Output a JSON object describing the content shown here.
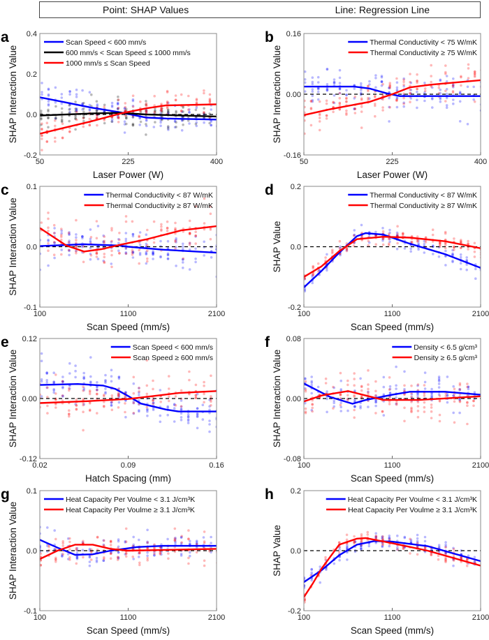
{
  "header": {
    "left": "Point: SHAP Values",
    "right": "Line: Regression Line"
  },
  "colors": {
    "blue": "#0000ff",
    "red": "#ff0000",
    "black": "#000000"
  },
  "chart_data": [
    {
      "type": "line",
      "letter": "a",
      "xlabel": "Laser Power (W)",
      "ylabel": "SHAP Interaction Value",
      "xlim": [
        50,
        400
      ],
      "ylim": [
        -0.2,
        0.4
      ],
      "xticks": [
        50,
        225,
        400
      ],
      "xtick_labels": [
        "50",
        "225",
        "400"
      ],
      "yticks": [
        -0.2,
        0,
        0.2,
        0.4
      ],
      "ytick_labels": [
        "-0.2",
        "0.0",
        "0.2",
        "0.4"
      ],
      "legend_position": "top-left",
      "scatter_spread": 0.05,
      "series": [
        {
          "name": "Scan Speed < 600 mm/s",
          "color": "blue",
          "points": [
            [
              50,
              0.085
            ],
            [
              100,
              0.06
            ],
            [
              150,
              0.035
            ],
            [
              210,
              0.01
            ],
            [
              260,
              -0.015
            ],
            [
              300,
              -0.02
            ],
            [
              400,
              -0.025
            ]
          ]
        },
        {
          "name": "600 mm/s < Scan Speed ≤ 1000 mm/s",
          "color": "black",
          "points": [
            [
              50,
              -0.005
            ],
            [
              150,
              0.005
            ],
            [
              210,
              0.008
            ],
            [
              260,
              0.0
            ],
            [
              400,
              -0.01
            ]
          ]
        },
        {
          "name": "1000 mm/s ≤ Scan Speed",
          "color": "red",
          "points": [
            [
              50,
              -0.095
            ],
            [
              100,
              -0.065
            ],
            [
              150,
              -0.035
            ],
            [
              210,
              0.005
            ],
            [
              260,
              0.03
            ],
            [
              300,
              0.045
            ],
            [
              400,
              0.05
            ]
          ]
        }
      ]
    },
    {
      "type": "line",
      "letter": "b",
      "xlabel": "Laser Power (W)",
      "ylabel": "SHAP Interaction Value",
      "xlim": [
        50,
        400
      ],
      "ylim": [
        -0.16,
        0.16
      ],
      "xticks": [
        50,
        225,
        400
      ],
      "xtick_labels": [
        "50",
        "225",
        "400"
      ],
      "yticks": [
        -0.16,
        0,
        0.16
      ],
      "ytick_labels": [
        "-0.16",
        "0.00",
        "0.16"
      ],
      "legend_position": "top-right",
      "scatter_spread": 0.04,
      "series": [
        {
          "name": "Thermal Conductivity < 75 W/mK",
          "color": "blue",
          "points": [
            [
              50,
              0.02
            ],
            [
              150,
              0.02
            ],
            [
              180,
              0.015
            ],
            [
              215,
              0.002
            ],
            [
              240,
              -0.005
            ],
            [
              400,
              -0.005
            ]
          ]
        },
        {
          "name": "Thermal Conductivity ≥ 75 W/mK",
          "color": "red",
          "points": [
            [
              50,
              -0.055
            ],
            [
              100,
              -0.04
            ],
            [
              180,
              -0.02
            ],
            [
              225,
              0.0
            ],
            [
              260,
              0.018
            ],
            [
              300,
              0.025
            ],
            [
              400,
              0.037
            ]
          ]
        }
      ]
    },
    {
      "type": "line",
      "letter": "c",
      "xlabel": "Scan Speed (mm/s)",
      "ylabel": "SHAP Interaction Value",
      "xlim": [
        100,
        2100
      ],
      "ylim": [
        -0.1,
        0.1
      ],
      "xticks": [
        100,
        1100,
        2100
      ],
      "xtick_labels": [
        "100",
        "1100",
        "2100"
      ],
      "yticks": [
        -0.1,
        0,
        0.1
      ],
      "ytick_labels": [
        "-0.1",
        "0.0",
        "0.1"
      ],
      "legend_position": "top-right",
      "scatter_spread": 0.025,
      "series": [
        {
          "name": "Thermal Conductivity < 87 W/mK",
          "color": "blue",
          "points": [
            [
              100,
              0.001
            ],
            [
              600,
              0.004
            ],
            [
              1000,
              0.002
            ],
            [
              1100,
              0
            ],
            [
              1500,
              -0.005
            ],
            [
              2100,
              -0.01
            ]
          ]
        },
        {
          "name": "Thermal Conductivity ≥ 87 W/mK",
          "color": "red",
          "points": [
            [
              100,
              0.031
            ],
            [
              400,
              0.002
            ],
            [
              600,
              -0.008
            ],
            [
              800,
              -0.004
            ],
            [
              1000,
              0.003
            ],
            [
              1300,
              0.012
            ],
            [
              1700,
              0.027
            ],
            [
              2100,
              0.034
            ]
          ]
        }
      ]
    },
    {
      "type": "line",
      "letter": "d",
      "xlabel": "Scan Speed (mm/s)",
      "ylabel": "SHAP Value",
      "xlim": [
        100,
        2100
      ],
      "ylim": [
        -0.2,
        0.2
      ],
      "xticks": [
        100,
        1100,
        2100
      ],
      "xtick_labels": [
        "100",
        "1100",
        "2100"
      ],
      "yticks": [
        -0.2,
        0,
        0.2
      ],
      "ytick_labels": [
        "-0.2",
        "0.0",
        "0.2"
      ],
      "legend_position": "top-right",
      "scatter_spread": 0.02,
      "series": [
        {
          "name": "Thermal Conductivity < 87 W/mK",
          "color": "blue",
          "points": [
            [
              100,
              -0.135
            ],
            [
              300,
              -0.08
            ],
            [
              500,
              -0.02
            ],
            [
              700,
              0.035
            ],
            [
              800,
              0.045
            ],
            [
              1000,
              0.04
            ],
            [
              1300,
              0.01
            ],
            [
              1700,
              -0.025
            ],
            [
              2100,
              -0.07
            ]
          ]
        },
        {
          "name": "Thermal Conductivity ≥ 87 W/mK",
          "color": "red",
          "points": [
            [
              100,
              -0.1
            ],
            [
              300,
              -0.065
            ],
            [
              500,
              -0.015
            ],
            [
              700,
              0.025
            ],
            [
              1000,
              0.033
            ],
            [
              1300,
              0.03
            ],
            [
              1700,
              0.018
            ],
            [
              2100,
              -0.005
            ]
          ]
        }
      ]
    },
    {
      "type": "line",
      "letter": "e",
      "xlabel": "Hatch Spacing (mm)",
      "ylabel": "SHAP Interaction Value",
      "xlim": [
        0.02,
        0.16
      ],
      "ylim": [
        -0.12,
        0.12
      ],
      "xticks": [
        0.02,
        0.09,
        0.16
      ],
      "xtick_labels": [
        "0.02",
        "0.09",
        "0.16"
      ],
      "yticks": [
        -0.12,
        0,
        0.12
      ],
      "ytick_labels": [
        "-0.12",
        "0.00",
        "0.12"
      ],
      "legend_position": "top-right",
      "scatter_spread": 0.03,
      "series": [
        {
          "name": "Scan Speed < 600 mm/s",
          "color": "blue",
          "points": [
            [
              0.02,
              0.027
            ],
            [
              0.05,
              0.029
            ],
            [
              0.07,
              0.026
            ],
            [
              0.08,
              0.019
            ],
            [
              0.09,
              0.005
            ],
            [
              0.1,
              -0.01
            ],
            [
              0.12,
              -0.022
            ],
            [
              0.13,
              -0.026
            ],
            [
              0.16,
              -0.026
            ]
          ]
        },
        {
          "name": "Scan Speed ≥ 600 mm/s",
          "color": "red",
          "points": [
            [
              0.02,
              -0.009
            ],
            [
              0.06,
              -0.005
            ],
            [
              0.09,
              -0.001
            ],
            [
              0.11,
              0.005
            ],
            [
              0.13,
              0.011
            ],
            [
              0.16,
              0.015
            ]
          ]
        }
      ]
    },
    {
      "type": "line",
      "letter": "f",
      "xlabel": "Scan Speed (mm/s)",
      "ylabel": "SHAP Interaction Value",
      "xlim": [
        100,
        2100
      ],
      "ylim": [
        -0.08,
        0.08
      ],
      "xticks": [
        100,
        1100,
        2100
      ],
      "xtick_labels": [
        "100",
        "1100",
        "2100"
      ],
      "yticks": [
        -0.08,
        0,
        0.08
      ],
      "ytick_labels": [
        "-0.08",
        "0.00",
        "0.08"
      ],
      "legend_position": "top-right",
      "scatter_spread": 0.018,
      "series": [
        {
          "name": "Density < 6.5 g/cm³",
          "color": "blue",
          "points": [
            [
              100,
              0.02
            ],
            [
              400,
              0.002
            ],
            [
              650,
              -0.007
            ],
            [
              800,
              -0.002
            ],
            [
              1100,
              0.005
            ],
            [
              1300,
              0.009
            ],
            [
              1700,
              0.009
            ],
            [
              2100,
              0.005
            ]
          ]
        },
        {
          "name": "Density ≥ 6.5 g/cm³",
          "color": "red",
          "points": [
            [
              100,
              -0.004
            ],
            [
              300,
              0.004
            ],
            [
              600,
              0.01
            ],
            [
              800,
              0.004
            ],
            [
              1000,
              -0.002
            ],
            [
              1400,
              -0.002
            ],
            [
              2100,
              0.003
            ]
          ]
        }
      ]
    },
    {
      "type": "line",
      "letter": "g",
      "xlabel": "Scan Speed (mm/s)",
      "ylabel": "SHAP Interaction Value",
      "xlim": [
        100,
        2100
      ],
      "ylim": [
        -0.1,
        0.1
      ],
      "xticks": [
        100,
        1100,
        2100
      ],
      "xtick_labels": [
        "100",
        "1100",
        "2100"
      ],
      "yticks": [
        -0.1,
        0,
        0.1
      ],
      "ytick_labels": [
        "-0.1",
        "0.0",
        "0.1"
      ],
      "legend_position": "top-left",
      "scatter_spread": 0.018,
      "series": [
        {
          "name": "Heat Capacity Per Voulme < 3.1 J/cm³K",
          "color": "blue",
          "points": [
            [
              100,
              0.018
            ],
            [
              300,
              0.005
            ],
            [
              500,
              -0.007
            ],
            [
              700,
              -0.006
            ],
            [
              900,
              0
            ],
            [
              1200,
              0.006
            ],
            [
              1500,
              0.008
            ],
            [
              2100,
              0.008
            ]
          ]
        },
        {
          "name": "Heat Capacity Per Voulme ≥ 3.1 J/cm³K",
          "color": "red",
          "points": [
            [
              100,
              -0.014
            ],
            [
              300,
              0
            ],
            [
              500,
              0.01
            ],
            [
              700,
              0.01
            ],
            [
              900,
              0.003
            ],
            [
              1100,
              0
            ],
            [
              2100,
              0.003
            ]
          ]
        }
      ]
    },
    {
      "type": "line",
      "letter": "h",
      "xlabel": "Scan Speed (mm/s)",
      "ylabel": "SHAP Value",
      "xlim": [
        100,
        2100
      ],
      "ylim": [
        -0.2,
        0.2
      ],
      "xticks": [
        100,
        1100,
        2100
      ],
      "xtick_labels": [
        "100",
        "1100",
        "2100"
      ],
      "yticks": [
        -0.2,
        0,
        0.2
      ],
      "ytick_labels": [
        "-0.2",
        "0.0",
        "0.2"
      ],
      "legend_position": "top-right",
      "scatter_spread": 0.02,
      "series": [
        {
          "name": "Heat Capacity Per Voulme < 3.1 J/cm³K",
          "color": "blue",
          "points": [
            [
              100,
              -0.105
            ],
            [
              300,
              -0.065
            ],
            [
              500,
              -0.015
            ],
            [
              700,
              0.02
            ],
            [
              900,
              0.032
            ],
            [
              1100,
              0.03
            ],
            [
              1500,
              0.015
            ],
            [
              2100,
              -0.035
            ]
          ]
        },
        {
          "name": "Heat Capacity Per Voulme ≥ 3.1 J/cm³K",
          "color": "red",
          "points": [
            [
              100,
              -0.155
            ],
            [
              200,
              -0.11
            ],
            [
              300,
              -0.06
            ],
            [
              400,
              -0.02
            ],
            [
              500,
              0.02
            ],
            [
              700,
              0.04
            ],
            [
              800,
              0.042
            ],
            [
              1100,
              0.025
            ],
            [
              1500,
              0.0
            ],
            [
              2100,
              -0.05
            ]
          ]
        }
      ]
    }
  ]
}
